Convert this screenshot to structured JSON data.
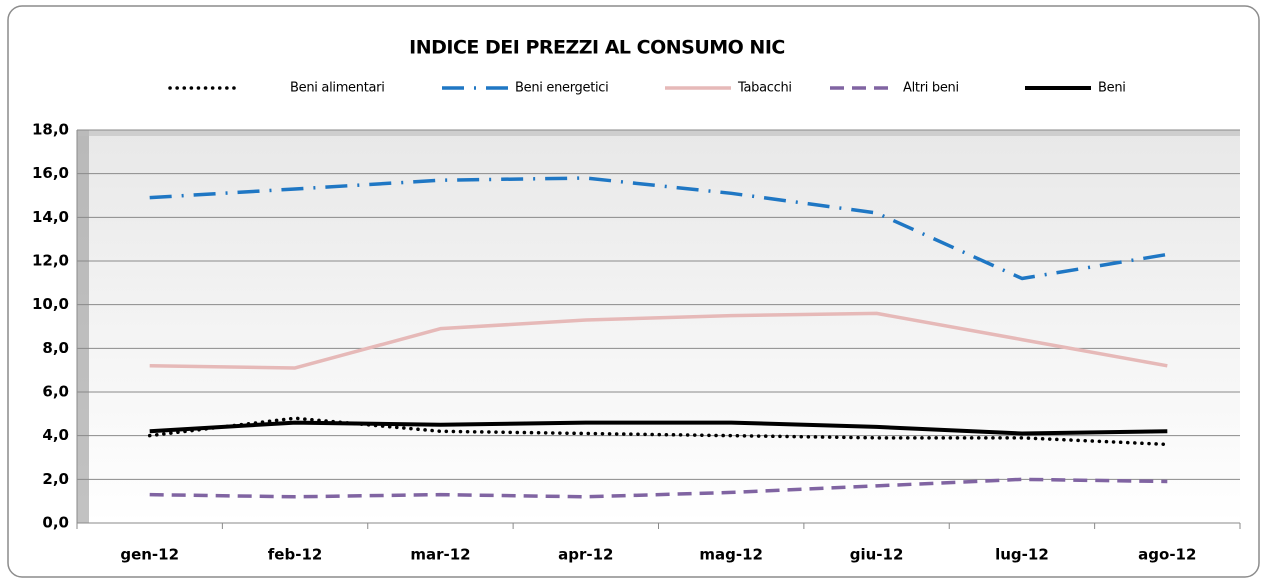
{
  "chart_data": {
    "type": "line",
    "title": "INDICE DEI PREZZI AL CONSUMO NIC",
    "categories": [
      "gen-12",
      "feb-12",
      "mar-12",
      "apr-12",
      "mag-12",
      "giu-12",
      "lug-12",
      "ago-12"
    ],
    "series": [
      {
        "name": "Beni alimentari",
        "color": "#000000",
        "style": "dotted",
        "values": [
          4.0,
          4.8,
          4.2,
          4.1,
          4.0,
          3.9,
          3.9,
          3.6
        ]
      },
      {
        "name": "Beni energetici",
        "color": "#1f77c4",
        "style": "dashdot",
        "values": [
          14.9,
          15.3,
          15.7,
          15.8,
          15.1,
          14.2,
          11.2,
          12.3
        ]
      },
      {
        "name": "Tabacchi",
        "color": "#e6b9b8",
        "style": "solid",
        "values": [
          7.2,
          7.1,
          8.9,
          9.3,
          9.5,
          9.6,
          8.4,
          7.2
        ]
      },
      {
        "name": "Altri beni",
        "color": "#8064a2",
        "style": "dashed",
        "values": [
          1.3,
          1.2,
          1.3,
          1.2,
          1.4,
          1.7,
          2.0,
          1.9
        ]
      },
      {
        "name": "Beni",
        "color": "#000000",
        "style": "thick",
        "values": [
          4.2,
          4.6,
          4.5,
          4.6,
          4.6,
          4.4,
          4.1,
          4.2
        ]
      }
    ],
    "ylim": [
      0,
      18
    ],
    "yticks": [
      {
        "value": 0,
        "label": "0,0"
      },
      {
        "value": 2,
        "label": "2,0"
      },
      {
        "value": 4,
        "label": "4,0"
      },
      {
        "value": 6,
        "label": "6,0"
      },
      {
        "value": 8,
        "label": "8,0"
      },
      {
        "value": 10,
        "label": "10,0"
      },
      {
        "value": 12,
        "label": "12,0"
      },
      {
        "value": 14,
        "label": "14,0"
      },
      {
        "value": 16,
        "label": "16,0"
      },
      {
        "value": 18,
        "label": "18,0"
      }
    ],
    "grid": true,
    "legend": "top"
  }
}
